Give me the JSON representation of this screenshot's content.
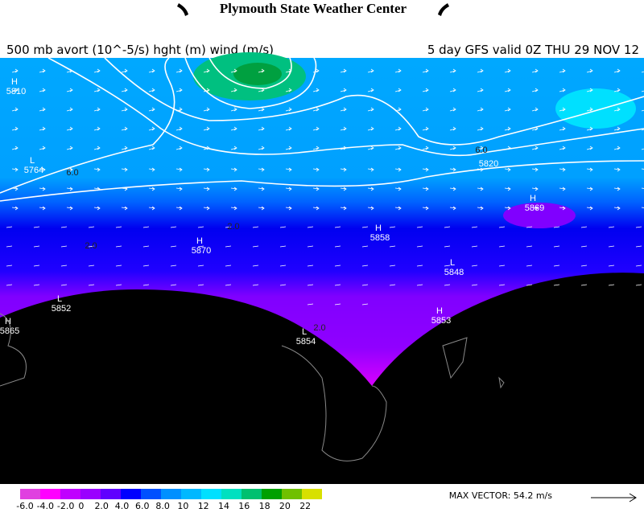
{
  "header": {
    "title": "Plymouth State Weather Center",
    "left_subtitle": "500 mb avort (10^-5/s) hght (m) wind (m/s)",
    "right_subtitle": "5 day GFS valid 0Z THU 29 NOV 12"
  },
  "centers": [
    {
      "type": "H",
      "value": 5810
    },
    {
      "type": "L",
      "value": 5764
    },
    {
      "type": "H",
      "value": 5869
    },
    {
      "type": "H",
      "value": 5858
    },
    {
      "type": "H",
      "value": 5870
    },
    {
      "type": "L",
      "value": 5848
    },
    {
      "type": "L",
      "value": 5852
    },
    {
      "type": "H",
      "value": 5865
    },
    {
      "type": "H",
      "value": 5853
    },
    {
      "type": "L",
      "value": 5854
    }
  ],
  "contour_labels": [
    "6.0",
    "6.0",
    "5820",
    "2.0",
    "2.0",
    "2.0"
  ],
  "colorbar": {
    "colors": [
      "#e040e0",
      "#ff00ff",
      "#c000ff",
      "#9a00ff",
      "#6000ff",
      "#0000ff",
      "#0050ff",
      "#0090ff",
      "#00b8ff",
      "#00e0ff",
      "#00e0c0",
      "#00c070",
      "#00a000",
      "#70c000",
      "#d8e000"
    ],
    "labels": [
      "-6.0",
      "-4.0",
      "-2.0",
      "0",
      "2.0",
      "4.0",
      "6.0",
      "8.0",
      "10",
      "12",
      "14",
      "16",
      "18",
      "20",
      "22"
    ]
  },
  "max_vector": "MAX VECTOR:  54.2 m/s"
}
